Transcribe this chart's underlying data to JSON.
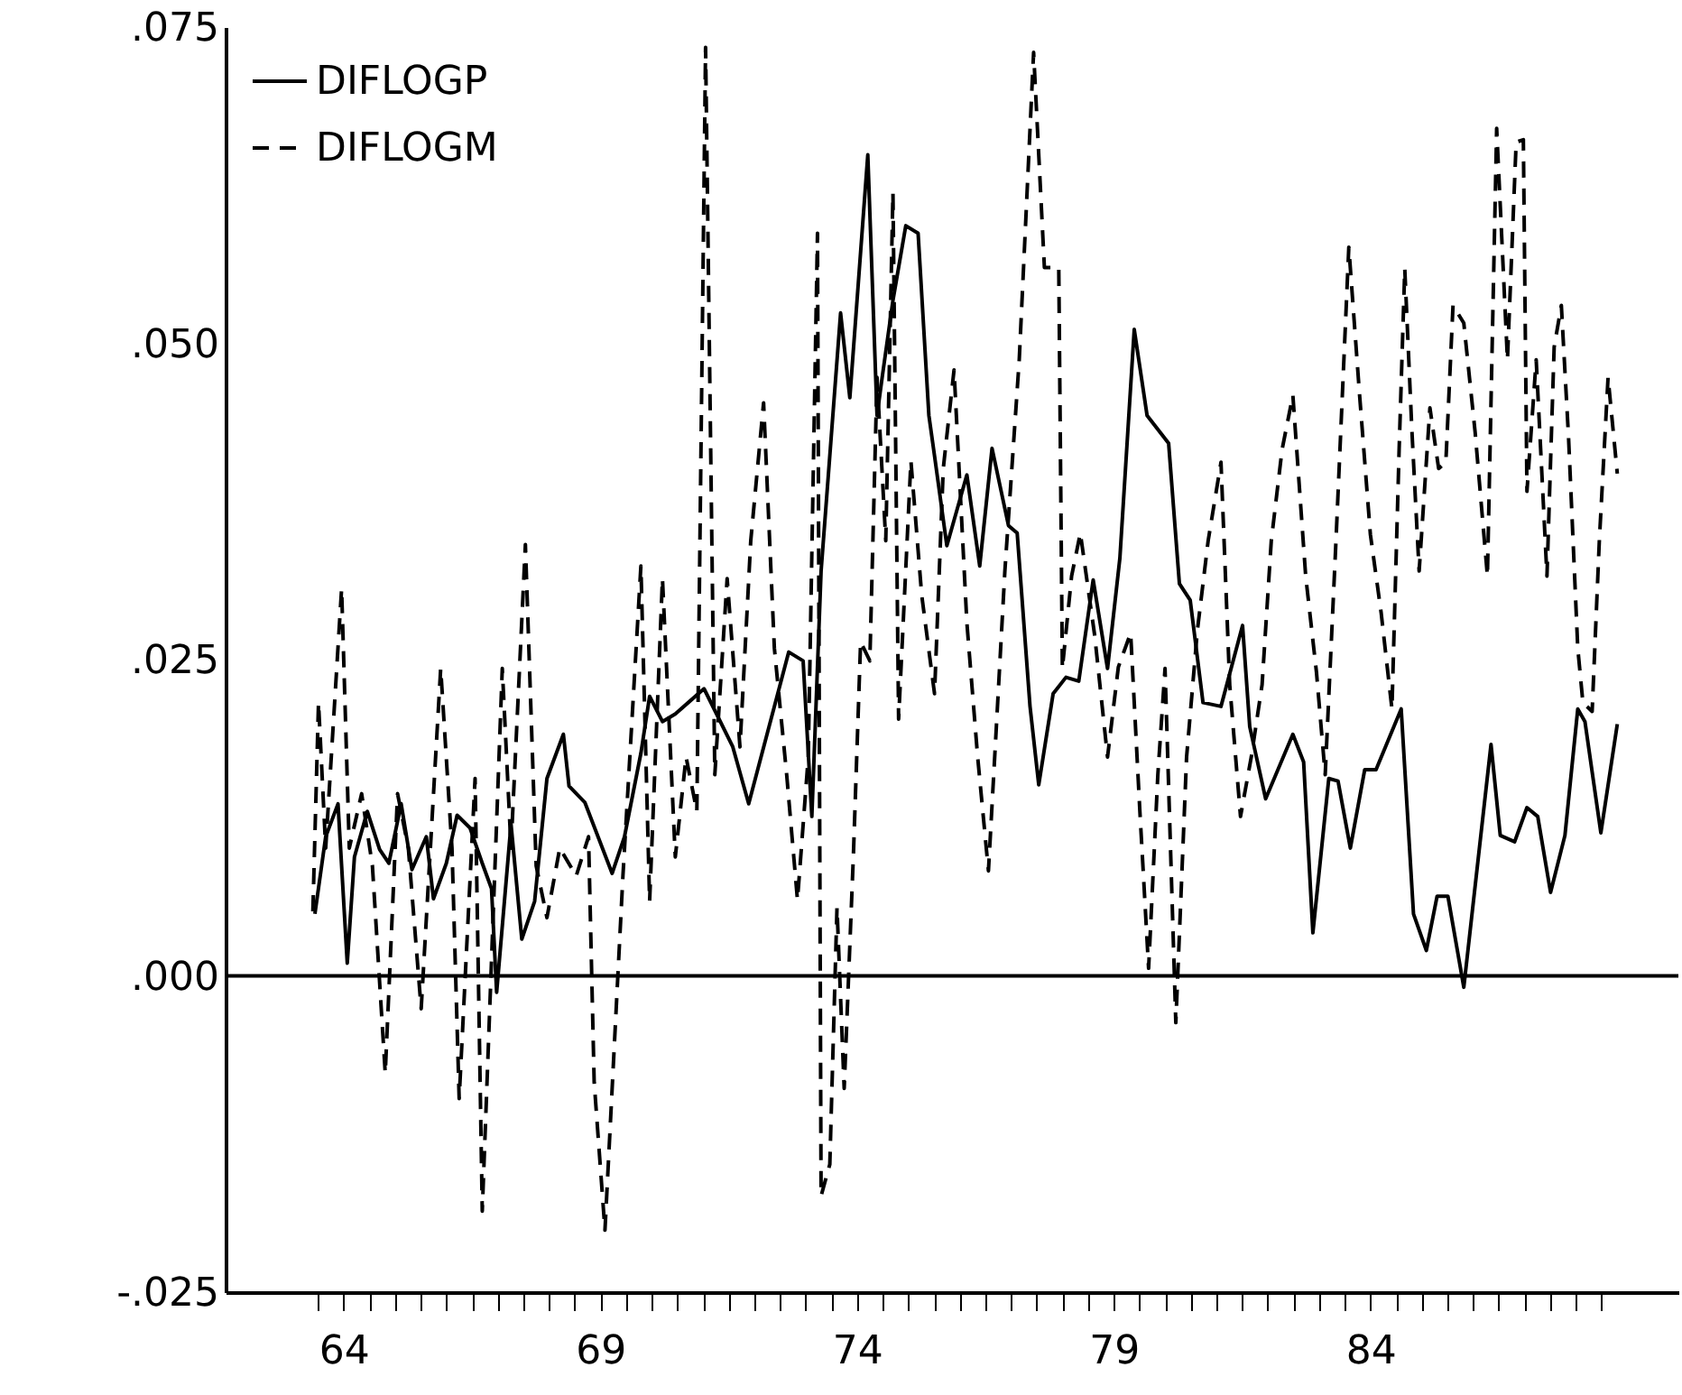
{
  "chart_data": {
    "type": "line",
    "legend": "top left",
    "xlim": [
      61.7,
      90.0
    ],
    "xticks": [
      {
        "value": 63.5,
        "label": null
      },
      64,
      {
        "value": 64.5,
        "label": null
      },
      {
        "value": 65,
        "label": null
      },
      {
        "value": 65.5,
        "label": null
      },
      {
        "value": 66,
        "label": null
      },
      {
        "value": 66.5,
        "label": null
      },
      {
        "value": 67,
        "label": null
      },
      {
        "value": 67.5,
        "label": null
      },
      {
        "value": 68,
        "label": null
      },
      {
        "value": 68.5,
        "label": null
      },
      69,
      {
        "value": 69.5,
        "label": null
      },
      {
        "value": 70,
        "label": null
      },
      {
        "value": 70.5,
        "label": null
      },
      {
        "value": 71,
        "label": null
      },
      {
        "value": 71.5,
        "label": null
      },
      {
        "value": 72,
        "label": null
      },
      {
        "value": 72.5,
        "label": null
      },
      {
        "value": 73,
        "label": null
      },
      {
        "value": 73.5,
        "label": null
      },
      74,
      {
        "value": 74.5,
        "label": null
      },
      {
        "value": 75,
        "label": null
      },
      {
        "value": 75.5,
        "label": null
      },
      {
        "value": 76,
        "label": null
      },
      {
        "value": 76.5,
        "label": null
      },
      {
        "value": 77,
        "label": null
      },
      {
        "value": 77.5,
        "label": null
      },
      {
        "value": 78,
        "label": null
      },
      {
        "value": 78.5,
        "label": null
      },
      79,
      {
        "value": 79.5,
        "label": null
      },
      {
        "value": 80,
        "label": null
      },
      {
        "value": 80.5,
        "label": null
      },
      {
        "value": 81,
        "label": null
      },
      {
        "value": 81.5,
        "label": null
      },
      {
        "value": 82,
        "label": null
      },
      {
        "value": 82.5,
        "label": null
      },
      {
        "value": 83,
        "label": null
      },
      {
        "value": 83.5,
        "label": null
      },
      84,
      {
        "value": 84.5,
        "label": null
      },
      {
        "value": 85,
        "label": null
      },
      {
        "value": 85.5,
        "label": null
      },
      {
        "value": 86,
        "label": null
      },
      {
        "value": 86.5,
        "label": null
      },
      {
        "value": 87,
        "label": null
      },
      {
        "value": 87.5,
        "label": null
      },
      {
        "value": 88,
        "label": null
      },
      {
        "value": 88.5,
        "label": null
      }
    ],
    "ylim": [
      -0.025,
      0.075
    ],
    "yticks": [
      {
        "value": -0.025,
        "label": "-.025"
      },
      {
        "value": 0,
        "label": ".000"
      },
      {
        "value": 0.025,
        "label": ".025"
      },
      {
        "value": 0.05,
        "label": ".050"
      },
      {
        "value": 0.075,
        "label": ".075"
      }
    ],
    "ref_lines": [
      {
        "axis": "y",
        "value": 0
      }
    ],
    "series": [
      {
        "name": "DIFLOGP",
        "color": "#000000",
        "line_style": "solid",
        "x": [
          63.44,
          63.65,
          63.89,
          64.07,
          64.21,
          64.46,
          64.7,
          64.88,
          65.12,
          65.33,
          65.61,
          65.75,
          66.0,
          66.21,
          66.46,
          66.7,
          66.88,
          66.98,
          67.26,
          67.47,
          67.72,
          67.96,
          68.28,
          68.39,
          68.7,
          69.23,
          69.47,
          69.79,
          69.96,
          70.21,
          70.46,
          71.02,
          71.58,
          71.89,
          72.67,
          72.95,
          73.12,
          73.3,
          73.68,
          73.86,
          74.21,
          74.39,
          74.49,
          74.7,
          74.95,
          75.19,
          75.4,
          75.51,
          75.75,
          76.14,
          76.39,
          76.63,
          76.95,
          77.12,
          77.37,
          77.54,
          77.82,
          78.07,
          78.32,
          78.6,
          78.88,
          79.12,
          79.4,
          79.65,
          80.07,
          80.28,
          80.49,
          80.74,
          81.09,
          81.51,
          81.65,
          81.96,
          82.49,
          82.7,
          82.88,
          83.19,
          83.37,
          83.61,
          83.89,
          84.11,
          84.6,
          84.84,
          85.09,
          85.3,
          85.51,
          85.82,
          86.35,
          86.53,
          86.81,
          87.05,
          87.26,
          87.51,
          87.79,
          88.04,
          88.18,
          88.49,
          88.81
        ],
        "values": [
          0.0049,
          0.011,
          0.0136,
          0.001,
          0.0094,
          0.013,
          0.01,
          0.0089,
          0.0136,
          0.0084,
          0.011,
          0.0061,
          0.0089,
          0.0127,
          0.0117,
          0.0089,
          0.0069,
          -0.0013,
          0.012,
          0.0029,
          0.0059,
          0.0156,
          0.0191,
          0.015,
          0.0137,
          0.0081,
          0.011,
          0.0176,
          0.0221,
          0.0201,
          0.0207,
          0.0227,
          0.0181,
          0.0136,
          0.0256,
          0.0249,
          0.0126,
          0.032,
          0.0524,
          0.0457,
          0.0649,
          0.0443,
          0.0473,
          0.0534,
          0.0593,
          0.0587,
          0.0443,
          0.0411,
          0.034,
          0.0396,
          0.0324,
          0.0417,
          0.0356,
          0.035,
          0.0213,
          0.0151,
          0.0223,
          0.0236,
          0.0233,
          0.0313,
          0.0243,
          0.033,
          0.0511,
          0.0443,
          0.0421,
          0.031,
          0.0297,
          0.0216,
          0.0213,
          0.0277,
          0.0197,
          0.014,
          0.0191,
          0.0169,
          0.0034,
          0.0156,
          0.0154,
          0.0101,
          0.0163,
          0.0163,
          0.0211,
          0.0049,
          0.002,
          0.0063,
          0.0063,
          -0.0009,
          0.0183,
          0.0111,
          0.0106,
          0.0133,
          0.0126,
          0.0066,
          0.0111,
          0.0211,
          0.0201,
          0.0113,
          0.0199
        ]
      },
      {
        "name": "DIFLOGM",
        "color": "#000000",
        "line_style": "dashed",
        "x": [
          63.4,
          63.51,
          63.65,
          63.96,
          64.11,
          64.35,
          64.56,
          64.81,
          65.05,
          65.26,
          65.51,
          65.89,
          66.11,
          66.25,
          66.56,
          66.7,
          67.09,
          67.26,
          67.54,
          67.75,
          67.96,
          68.21,
          68.53,
          68.77,
          68.88,
          69.09,
          69.44,
          69.79,
          69.96,
          70.21,
          70.46,
          70.67,
          70.88,
          71.05,
          71.23,
          71.47,
          71.72,
          71.93,
          72.18,
          72.39,
          72.63,
          72.84,
          73.05,
          73.23,
          73.3,
          73.47,
          73.61,
          73.75,
          73.93,
          74.07,
          74.25,
          74.39,
          74.56,
          74.7,
          74.81,
          75.05,
          75.26,
          75.51,
          75.68,
          75.89,
          76.14,
          76.35,
          76.56,
          76.74,
          76.88,
          77.16,
          77.44,
          77.65,
          77.93,
          78.0,
          78.18,
          78.35,
          78.63,
          78.88,
          79.09,
          79.33,
          79.51,
          79.68,
          79.86,
          80.0,
          80.21,
          80.42,
          80.63,
          80.84,
          81.09,
          81.26,
          81.47,
          81.68,
          81.89,
          82.07,
          82.28,
          82.49,
          82.74,
          82.95,
          83.12,
          83.33,
          83.58,
          83.79,
          84.0,
          84.21,
          84.42,
          84.56,
          84.67,
          84.81,
          84.95,
          85.16,
          85.33,
          85.47,
          85.61,
          85.82,
          86.04,
          86.28,
          86.46,
          86.67,
          86.84,
          86.98,
          87.05,
          87.23,
          87.44,
          87.58,
          87.72,
          87.86,
          88.04,
          88.14,
          88.32,
          88.46,
          88.63,
          88.81
        ],
        "values": [
          0.0051,
          0.0216,
          0.0101,
          0.0306,
          0.0101,
          0.0144,
          0.0087,
          -0.0077,
          0.0144,
          0.0101,
          -0.0026,
          0.0243,
          0.0101,
          -0.0097,
          0.0156,
          -0.0186,
          0.0243,
          0.0101,
          0.0341,
          0.0087,
          0.0046,
          0.0101,
          0.0079,
          0.011,
          -0.0084,
          -0.0201,
          0.0079,
          0.0324,
          0.0059,
          0.0314,
          0.0094,
          0.0173,
          0.013,
          0.0734,
          0.0159,
          0.0314,
          0.0181,
          0.0344,
          0.0453,
          0.0259,
          0.0159,
          0.006,
          0.0173,
          0.0587,
          -0.0174,
          -0.0149,
          0.0054,
          -0.0089,
          0.0096,
          0.0264,
          0.0249,
          0.0473,
          0.0344,
          0.0619,
          0.0203,
          0.0407,
          0.0301,
          0.0223,
          0.0401,
          0.0479,
          0.0279,
          0.0173,
          0.0083,
          0.0216,
          0.032,
          0.0487,
          0.073,
          0.056,
          0.056,
          0.0243,
          0.0316,
          0.035,
          0.0269,
          0.0173,
          0.0244,
          0.0271,
          0.013,
          0.0006,
          0.0159,
          0.0243,
          -0.0037,
          0.0173,
          0.0273,
          0.0344,
          0.0406,
          0.023,
          0.0126,
          0.0173,
          0.023,
          0.0344,
          0.0416,
          0.0459,
          0.0316,
          0.024,
          0.0159,
          0.0344,
          0.0576,
          0.0459,
          0.0349,
          0.0287,
          0.0211,
          0.0416,
          0.0559,
          0.043,
          0.032,
          0.0449,
          0.0401,
          0.0406,
          0.053,
          0.0516,
          0.043,
          0.0316,
          0.067,
          0.0487,
          0.0659,
          0.0661,
          0.0383,
          0.0487,
          0.0316,
          0.0497,
          0.053,
          0.0426,
          0.0259,
          0.0216,
          0.0209,
          0.0344,
          0.0473,
          0.0397
        ]
      }
    ]
  }
}
